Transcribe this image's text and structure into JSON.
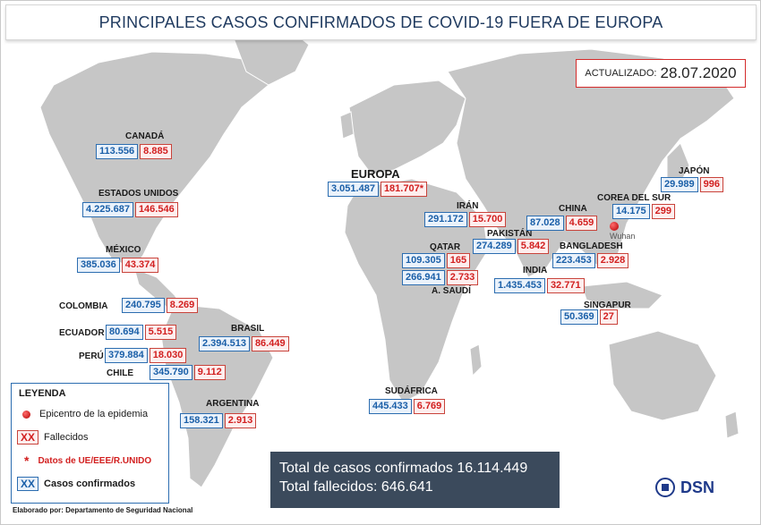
{
  "title": "PRINCIPALES CASOS CONFIRMADOS DE COVID-19 FUERA DE EUROPA",
  "updated": {
    "label": "ACTUALIZADO:",
    "date": "28.07.2020"
  },
  "countries": [
    {
      "name": "CANADÁ",
      "cases": "113.556",
      "deaths": "8.885"
    },
    {
      "name": "ESTADOS UNIDOS",
      "cases": "4.225.687",
      "deaths": "146.546"
    },
    {
      "name": "MÉXICO",
      "cases": "385.036",
      "deaths": "43.374"
    },
    {
      "name": "COLOMBIA",
      "cases": "240.795",
      "deaths": "8.269"
    },
    {
      "name": "ECUADOR",
      "cases": "80.694",
      "deaths": "5.515"
    },
    {
      "name": "PERÚ",
      "cases": "379.884",
      "deaths": "18.030"
    },
    {
      "name": "CHILE",
      "cases": "345.790",
      "deaths": "9.112"
    },
    {
      "name": "BRASIL",
      "cases": "2.394.513",
      "deaths": "86.449"
    },
    {
      "name": "ARGENTINA",
      "cases": "158.321",
      "deaths": "2.913"
    },
    {
      "name": "EUROPA",
      "cases": "3.051.487",
      "deaths": "181.707*"
    },
    {
      "name": "IRÁN",
      "cases": "291.172",
      "deaths": "15.700"
    },
    {
      "name": "QATAR",
      "cases": "109.305",
      "deaths": "165"
    },
    {
      "name": "A. SAUDÍ",
      "cases": "266.941",
      "deaths": "2.733"
    },
    {
      "name": "PAKISTÁN",
      "cases": "274.289",
      "deaths": "5.842"
    },
    {
      "name": "INDIA",
      "cases": "1.435.453",
      "deaths": "32.771"
    },
    {
      "name": "CHINA",
      "cases": "87.028",
      "deaths": "4.659"
    },
    {
      "name": "BANGLADESH",
      "cases": "223.453",
      "deaths": "2.928"
    },
    {
      "name": "COREA DEL SUR",
      "cases": "14.175",
      "deaths": "299"
    },
    {
      "name": "JAPÓN",
      "cases": "29.989",
      "deaths": "996"
    },
    {
      "name": "SINGAPUR",
      "cases": "50.369",
      "deaths": "27"
    },
    {
      "name": "SUDÁFRICA",
      "cases": "445.433",
      "deaths": "6.769"
    }
  ],
  "epicenter_label": "Wuhan",
  "legend": {
    "title": "LEYENDA",
    "epicenter": "Epicentro de la epidemia",
    "deaths_symbol": "XX",
    "deaths": "Fallecidos",
    "asterisk": "*",
    "ue_data": "Datos de UE/EEE/R.UNIDO",
    "cases_symbol": "XX",
    "cases": "Casos confirmados"
  },
  "totals": {
    "cases": "Total de casos confirmados 16.114.449",
    "deaths": "Total fallecidos: 646.641"
  },
  "credit": "Elaborado por: Departamento de Seguridad Nacional",
  "logo_text": "DSN",
  "colors": {
    "cases": "#1a5fa8",
    "deaths": "#d21f1f",
    "map": "#c8c8c8",
    "totals_bg": "#3b4a5c"
  }
}
